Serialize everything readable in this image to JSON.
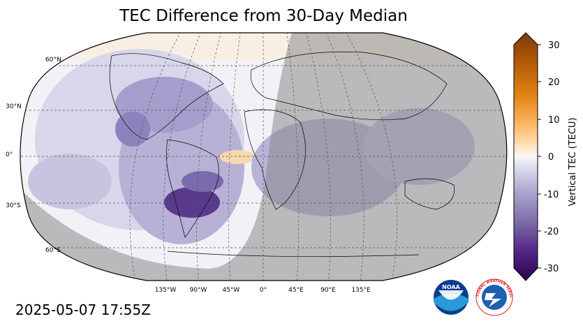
{
  "title": "TEC Difference from 30-Day Median",
  "timestamp": "2025-05-07 17:55Z",
  "map": {
    "projection": "Robinson",
    "lat_labels": [
      "60°N",
      "30°N",
      "0°",
      "30°S",
      "60°S"
    ],
    "lon_labels": [
      "135°W",
      "90°W",
      "45°W",
      "0°",
      "45°E",
      "90°E",
      "135°E"
    ],
    "gridlines": "dashed",
    "night_shading": "gray overlay"
  },
  "colorbar": {
    "label": "Vertical TEC (TECU)",
    "ticks": [
      "30",
      "20",
      "10",
      "0",
      "-10",
      "-20",
      "-30"
    ],
    "range": [
      -30,
      30
    ],
    "colormap": "PuOr diverging",
    "colors": {
      "max": "#7f3b08",
      "mid": "#f7f7f7",
      "min": "#2d004b"
    }
  },
  "logos": [
    {
      "name": "noaa-logo",
      "text": "NOAA"
    },
    {
      "name": "nws-logo",
      "text": "NATIONAL WEATHER SERVICE"
    }
  ]
}
